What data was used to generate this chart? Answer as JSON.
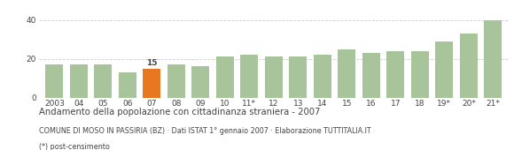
{
  "categories": [
    "2003",
    "04",
    "05",
    "06",
    "07",
    "08",
    "09",
    "10",
    "11*",
    "12",
    "13",
    "14",
    "15",
    "16",
    "17",
    "18",
    "19*",
    "20*",
    "21*"
  ],
  "values": [
    17,
    17,
    17,
    13,
    15,
    17,
    16,
    21,
    22,
    21,
    21,
    22,
    25,
    23,
    24,
    24,
    29,
    33,
    40
  ],
  "highlight_index": 4,
  "bar_color": "#a8c49a",
  "highlight_color": "#e87722",
  "highlight_label": "15",
  "title": "Andamento della popolazione con cittadinanza straniera - 2007",
  "subtitle": "COMUNE DI MOSO IN PASSIRIA (BZ) · Dati ISTAT 1° gennaio 2007 · Elaborazione TUTTITALIA.IT",
  "footnote": "(*) post-censimento",
  "ylim": [
    0,
    45
  ],
  "yticks": [
    0,
    20,
    40
  ],
  "grid_color": "#cccccc",
  "bg_color": "#ffffff",
  "text_color": "#444444"
}
